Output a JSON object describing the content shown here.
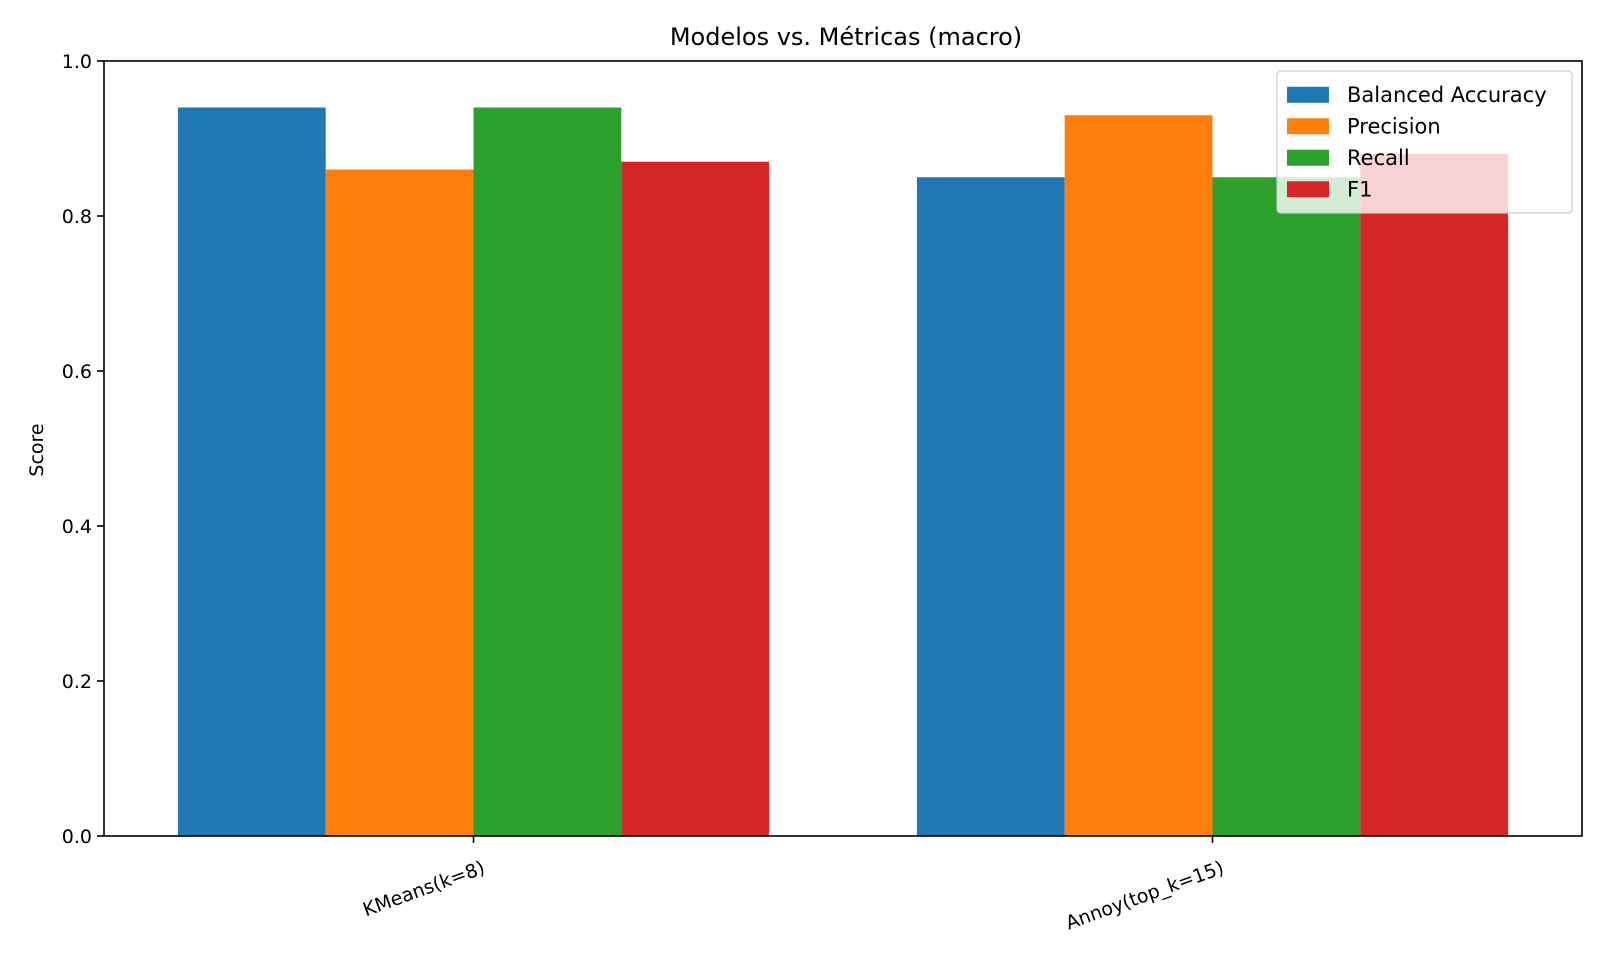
{
  "chart_data": {
    "type": "bar",
    "title": "Modelos vs. Métricas (macro)",
    "xlabel": "",
    "ylabel": "Score",
    "ylim": [
      0,
      1.0
    ],
    "yticks": [
      "0.0",
      "0.2",
      "0.4",
      "0.6",
      "0.8",
      "1.0"
    ],
    "categories": [
      "KMeans(k=8)",
      "Annoy(top_k=15)"
    ],
    "series": [
      {
        "name": "Balanced Accuracy",
        "color": "#1f77b4",
        "values": [
          0.94,
          0.85
        ]
      },
      {
        "name": "Precision",
        "color": "#ff7f0e",
        "values": [
          0.86,
          0.93
        ]
      },
      {
        "name": "Recall",
        "color": "#2ca02c",
        "values": [
          0.94,
          0.85
        ]
      },
      {
        "name": "F1",
        "color": "#d62728",
        "values": [
          0.87,
          0.88
        ]
      }
    ],
    "grid": false,
    "legend_position": "top-right",
    "x_tick_rotation_deg": 20
  }
}
